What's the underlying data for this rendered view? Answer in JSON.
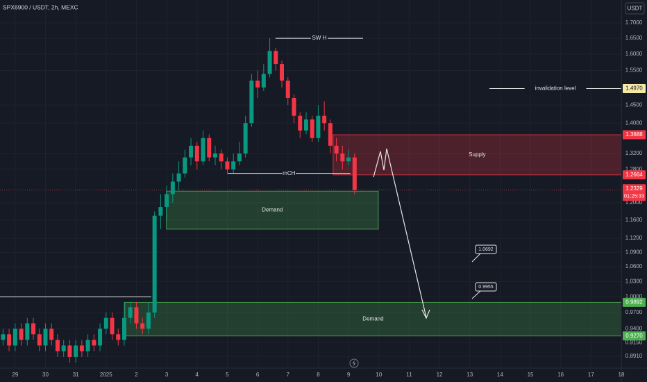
{
  "chart_data": {
    "type": "candlestick",
    "title": "SPX6900 / USDT, 2h, MEXC",
    "currency": "USDT",
    "log_scale": true,
    "grid": true,
    "up_color": "#089981",
    "down_color": "#f23645",
    "xlim": [
      -0.5,
      20
    ],
    "ylim": [
      0.871,
      1.777
    ],
    "xticks": [
      {
        "value": 0,
        "label": "29"
      },
      {
        "value": 1,
        "label": "30"
      },
      {
        "value": 2,
        "label": "31"
      },
      {
        "value": 3,
        "label": "2025"
      },
      {
        "value": 4,
        "label": "2"
      },
      {
        "value": 5,
        "label": "3"
      },
      {
        "value": 6,
        "label": "4"
      },
      {
        "value": 7,
        "label": "5"
      },
      {
        "value": 8,
        "label": "6"
      },
      {
        "value": 9,
        "label": "7"
      },
      {
        "value": 10,
        "label": "8"
      },
      {
        "value": 11,
        "label": "9"
      },
      {
        "value": 12,
        "label": "10"
      },
      {
        "value": 13,
        "label": "11"
      },
      {
        "value": 14,
        "label": "12"
      },
      {
        "value": 15,
        "label": "13"
      },
      {
        "value": 16,
        "label": "14"
      },
      {
        "value": 17,
        "label": "15"
      },
      {
        "value": 18,
        "label": "16"
      },
      {
        "value": 19,
        "label": "17"
      },
      {
        "value": 20,
        "label": "18"
      }
    ],
    "yticks": [
      {
        "value": 1.7,
        "label": "1.7000"
      },
      {
        "value": 1.65,
        "label": "1.6500"
      },
      {
        "value": 1.6,
        "label": "1.6000"
      },
      {
        "value": 1.55,
        "label": "1.5500"
      },
      {
        "value": 1.45,
        "label": "1.4500"
      },
      {
        "value": 1.4,
        "label": "1.4000"
      },
      {
        "value": 1.32,
        "label": "1.3200"
      },
      {
        "value": 1.28,
        "label": "1.2800"
      },
      {
        "value": 1.2,
        "label": "1.2000"
      },
      {
        "value": 1.16,
        "label": "1.1600"
      },
      {
        "value": 1.12,
        "label": "1.1200"
      },
      {
        "value": 1.09,
        "label": "1.0900"
      },
      {
        "value": 1.06,
        "label": "1.0600"
      },
      {
        "value": 1.03,
        "label": "1.0300"
      },
      {
        "value": 1,
        "label": "1.0000"
      },
      {
        "value": 0.97,
        "label": "0.9700"
      },
      {
        "value": 0.94,
        "label": "0.9400"
      },
      {
        "value": 0.915,
        "label": "0.9150"
      },
      {
        "value": 0.891,
        "label": "0.8910"
      }
    ],
    "x": [
      -0.4,
      -0.2,
      0,
      0.2,
      0.4,
      0.6,
      0.8,
      1,
      1.2,
      1.4,
      1.6,
      1.8,
      2,
      2.2,
      2.4,
      2.6,
      2.8,
      3,
      3.2,
      3.4,
      3.6,
      3.8,
      4,
      4.2,
      4.4,
      4.6,
      4.8,
      5,
      5.2,
      5.4,
      5.6,
      5.8,
      6,
      6.2,
      6.4,
      6.6,
      6.8,
      7,
      7.2,
      7.4,
      7.6,
      7.8,
      8,
      8.2,
      8.4,
      8.6,
      8.8,
      9,
      9.2,
      9.4,
      9.6,
      9.8,
      10,
      10.2,
      10.4,
      10.6,
      10.8,
      11,
      11.2
    ],
    "open": [
      0.92,
      0.93,
      0.91,
      0.94,
      0.92,
      0.95,
      0.93,
      0.91,
      0.94,
      0.92,
      0.9,
      0.91,
      0.89,
      0.91,
      0.9,
      0.92,
      0.91,
      0.94,
      0.96,
      0.93,
      0.92,
      0.96,
      0.98,
      0.95,
      0.94,
      0.97,
      1.17,
      1.19,
      1.22,
      1.25,
      1.27,
      1.31,
      1.34,
      1.3,
      1.36,
      1.31,
      1.32,
      1.3,
      1.28,
      1.3,
      1.32,
      1.4,
      1.52,
      1.5,
      1.54,
      1.61,
      1.57,
      1.52,
      1.47,
      1.42,
      1.38,
      1.41,
      1.36,
      1.42,
      1.4,
      1.34,
      1.32,
      1.3,
      1.31
    ],
    "high": [
      0.94,
      0.94,
      0.95,
      0.95,
      0.96,
      0.96,
      0.94,
      0.95,
      0.95,
      0.93,
      0.92,
      0.92,
      0.92,
      0.92,
      0.93,
      0.93,
      0.95,
      0.97,
      0.97,
      0.94,
      0.99,
      0.99,
      0.99,
      0.96,
      0.99,
      1.18,
      1.22,
      1.24,
      1.27,
      1.3,
      1.33,
      1.36,
      1.35,
      1.38,
      1.37,
      1.34,
      1.33,
      1.31,
      1.32,
      1.35,
      1.42,
      1.54,
      1.55,
      1.57,
      1.65,
      1.62,
      1.58,
      1.53,
      1.48,
      1.43,
      1.43,
      1.42,
      1.45,
      1.46,
      1.41,
      1.36,
      1.34,
      1.33,
      1.32
    ],
    "low": [
      0.91,
      0.9,
      0.9,
      0.91,
      0.91,
      0.92,
      0.9,
      0.9,
      0.91,
      0.89,
      0.89,
      0.88,
      0.88,
      0.89,
      0.89,
      0.9,
      0.9,
      0.93,
      0.92,
      0.91,
      0.91,
      0.95,
      0.94,
      0.93,
      0.93,
      0.96,
      1.14,
      1.16,
      1.2,
      1.23,
      1.26,
      1.29,
      1.28,
      1.29,
      1.3,
      1.29,
      1.28,
      1.27,
      1.27,
      1.29,
      1.31,
      1.39,
      1.47,
      1.49,
      1.53,
      1.55,
      1.5,
      1.45,
      1.4,
      1.36,
      1.37,
      1.35,
      1.35,
      1.38,
      1.32,
      1.3,
      1.28,
      1.29,
      1.22
    ],
    "close": [
      0.93,
      0.91,
      0.94,
      0.92,
      0.95,
      0.93,
      0.91,
      0.94,
      0.92,
      0.9,
      0.91,
      0.89,
      0.91,
      0.9,
      0.92,
      0.91,
      0.94,
      0.96,
      0.93,
      0.92,
      0.96,
      0.98,
      0.95,
      0.94,
      0.97,
      1.17,
      1.19,
      1.22,
      1.25,
      1.27,
      1.31,
      1.34,
      1.3,
      1.36,
      1.31,
      1.32,
      1.3,
      1.28,
      1.3,
      1.32,
      1.4,
      1.52,
      1.5,
      1.54,
      1.61,
      1.57,
      1.52,
      1.47,
      1.42,
      1.38,
      1.41,
      1.36,
      1.42,
      1.4,
      1.34,
      1.32,
      1.3,
      1.31,
      1.23
    ],
    "zones": [
      {
        "label": "Supply",
        "x": [
          10.49,
          20
        ],
        "y": [
          1.2664,
          1.3688
        ],
        "color": "#f23645"
      },
      {
        "label": "Demand",
        "x": [
          4.99,
          11.98
        ],
        "y": [
          1.14,
          1.227
        ],
        "color": "#4caf50"
      },
      {
        "label": "Demand",
        "x": [
          3.62,
          20
        ],
        "y": [
          0.927,
          0.9892
        ],
        "color": "#4caf50"
      }
    ],
    "levels": [
      {
        "label": "invalidation level",
        "value": 1.497,
        "x": [
          15.65,
          20
        ]
      },
      {
        "label": "SW H",
        "value": 1.65,
        "x": [
          8.59,
          11.48
        ]
      },
      {
        "label": "mCH",
        "value": 1.27,
        "x": [
          7.01,
          11.06
        ]
      }
    ],
    "plain_line": {
      "value": 1,
      "x": [
        -0.5,
        4.49
      ]
    },
    "callouts": [
      1.0692,
      0.9955
    ],
    "price_labels": [
      {
        "value": 1.497,
        "label": "1.4970",
        "color": "#f5e9a6"
      },
      {
        "value": 1.3688,
        "label": "1.3688",
        "color": "#f23645"
      },
      {
        "value": 1.2664,
        "label": "1.2664",
        "color": "#f23645"
      },
      {
        "value": 1.2329,
        "label": "1.2329",
        "color": "#f23645"
      },
      {
        "value": 0.9892,
        "label": "0.9892",
        "color": "#4caf50"
      },
      {
        "value": 0.927,
        "label": "0.9270",
        "color": "#4caf50"
      }
    ],
    "countdown": "01:25:33"
  }
}
